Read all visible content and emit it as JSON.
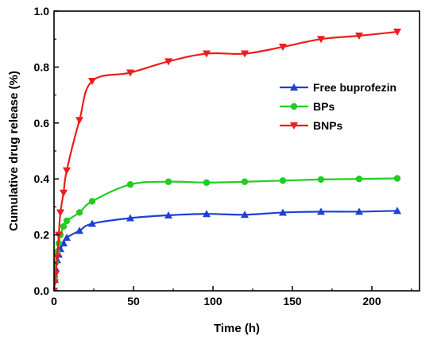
{
  "chart_data": {
    "type": "line",
    "title": "",
    "xlabel": "Time (h)",
    "ylabel": "Cumulative drug release (%)",
    "xlim": [
      0,
      230
    ],
    "ylim": [
      0,
      1.0
    ],
    "xticks": [
      0,
      50,
      100,
      150,
      200
    ],
    "yticks": [
      0.0,
      0.2,
      0.4,
      0.6,
      0.8,
      1.0
    ],
    "grid": false,
    "legend_position": "center-right",
    "series": [
      {
        "name": "Free buprofezin",
        "color": "#1f3fd6",
        "marker": "triangle-up",
        "x": [
          0,
          0.5,
          1,
          2,
          3,
          4,
          6,
          8,
          16,
          24,
          48,
          72,
          96,
          120,
          144,
          168,
          192,
          216
        ],
        "y": [
          0,
          0.04,
          0.08,
          0.11,
          0.13,
          0.15,
          0.17,
          0.19,
          0.215,
          0.24,
          0.26,
          0.27,
          0.275,
          0.272,
          0.28,
          0.283,
          0.283,
          0.286
        ]
      },
      {
        "name": "BPs",
        "color": "#22cc22",
        "marker": "circle",
        "x": [
          0,
          0.5,
          1,
          2,
          3,
          4,
          6,
          8,
          16,
          24,
          48,
          72,
          96,
          120,
          144,
          168,
          192,
          216
        ],
        "y": [
          0,
          0.05,
          0.1,
          0.14,
          0.17,
          0.2,
          0.23,
          0.25,
          0.28,
          0.32,
          0.38,
          0.39,
          0.387,
          0.39,
          0.394,
          0.398,
          0.4,
          0.402
        ]
      },
      {
        "name": "BNPs",
        "color": "#ee1c1c",
        "marker": "triangle-down",
        "x": [
          0,
          0.5,
          1,
          2,
          3,
          4,
          6,
          8,
          16,
          24,
          48,
          72,
          96,
          120,
          144,
          168,
          192,
          216
        ],
        "y": [
          0,
          0.03,
          0.06,
          0.12,
          0.2,
          0.28,
          0.35,
          0.43,
          0.61,
          0.75,
          0.78,
          0.82,
          0.848,
          0.848,
          0.872,
          0.9,
          0.912,
          0.926
        ]
      }
    ]
  }
}
